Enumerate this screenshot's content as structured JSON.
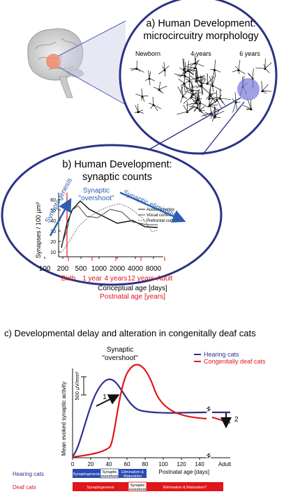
{
  "panel_a": {
    "title_line1": "a) Human Development:",
    "title_line2": "microcircuitry morphology",
    "ages": [
      "Newborn",
      "4 years",
      "6 years"
    ]
  },
  "panel_b": {
    "title_line1": "b) Human Development:",
    "title_line2": "synaptic counts",
    "ylabel": "Synapses / 100 µm³",
    "y_ticks": [
      "60",
      "50",
      "40",
      "30",
      "20",
      "10"
    ],
    "x_ticks": [
      "100",
      "200",
      "500",
      "1000",
      "2000",
      "4000",
      "8000"
    ],
    "red_ticks": [
      "Birth",
      "1 year",
      "4 years",
      "12 years",
      "Adult"
    ],
    "xlabel1": "Conceptual age [days]",
    "xlabel2": "Postnatal age [years]",
    "legend": [
      "Auditory cortex",
      "Visual cortex",
      "Prefrontal cortex"
    ],
    "ann_synaptogenesis": "Synaptogenesis",
    "ann_overshoot1": "Synaptic",
    "ann_overshoot2": "\"overshoot\"",
    "ann_elimination": "Synaptic elimination"
  },
  "panel_c": {
    "title": "c) Developmental delay and alteration in congenitally deaf cats",
    "overshoot1": "Synaptic",
    "overshoot2": "\"overshoot\"",
    "legend_hearing": "Hearing cats",
    "legend_deaf": "Congenitally deaf cats",
    "ylabel": "Mean evoked synaptic activity",
    "scale": "500 µV/mm²",
    "x_ticks": [
      "0",
      "20",
      "40",
      "60",
      "80",
      "100",
      "120",
      "140"
    ],
    "adult": "Adult",
    "xlabel": "Postnatal age [days]",
    "marker1": "1",
    "marker2": "2",
    "row_hearing": "Hearing cats",
    "row_deaf": "Deaf cats",
    "h_bar1": "Synaptogenesis",
    "h_bar2a": "Synaptic",
    "h_bar2b": "overshoot",
    "h_bar3a": "Elimination &",
    "h_bar3b": "Maturation",
    "d_bar1": "Synaptogenesis",
    "d_bar2a": "Synaptic",
    "d_bar2b": "overshoot",
    "d_bar3": "Elimination & Maturation?",
    "colors": {
      "hearing": "#2b2f8f",
      "deaf": "#e0161b",
      "panel_border": "#2a3285"
    }
  }
}
